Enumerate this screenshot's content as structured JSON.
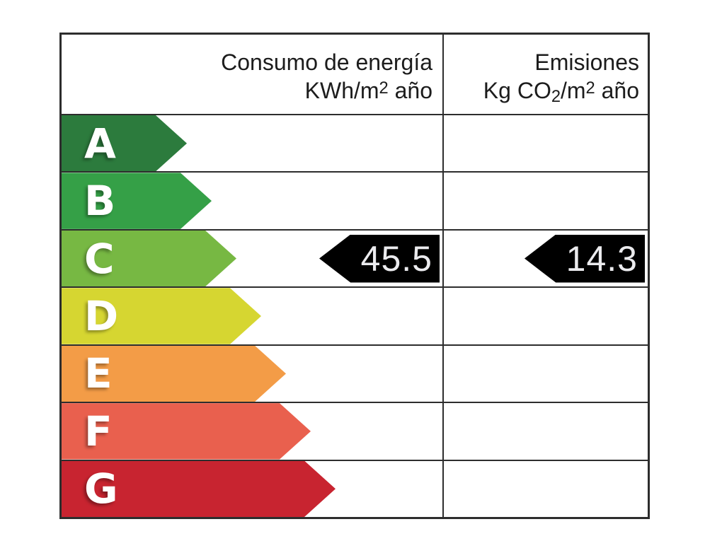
{
  "header": {
    "consumo": {
      "line1": "Consumo de energía",
      "line2_pre": "KWh/m",
      "line2_sup": "2",
      "line2_post": " año"
    },
    "emisiones": {
      "line1": "Emisiones",
      "line2_pre": "Kg CO",
      "line2_sub": "2",
      "line2_mid": "/m",
      "line2_sup": "2",
      "line2_post": " año"
    }
  },
  "bands": [
    {
      "letter": "A",
      "color": "#2c7b3d"
    },
    {
      "letter": "B",
      "color": "#35a047"
    },
    {
      "letter": "C",
      "color": "#77b843"
    },
    {
      "letter": "D",
      "color": "#d6d631"
    },
    {
      "letter": "E",
      "color": "#f39c47"
    },
    {
      "letter": "F",
      "color": "#e9604e"
    },
    {
      "letter": "G",
      "color": "#c82430"
    }
  ],
  "ratings": {
    "consumo": {
      "value": "45.5",
      "band": "C"
    },
    "emisiones": {
      "value": "14.3",
      "band": "C"
    }
  },
  "colors": {
    "value_arrow": "#000000",
    "value_text": "#ebebee",
    "grid_line": "#2d2d2d"
  },
  "chart_data": {
    "type": "bar",
    "title": "",
    "categories": [
      "A",
      "B",
      "C",
      "D",
      "E",
      "F",
      "G"
    ],
    "series": [
      {
        "name": "Consumo de energía KWh/m² año",
        "rated_band": "C",
        "value": 45.5
      },
      {
        "name": "Emisiones Kg CO₂/m² año",
        "rated_band": "C",
        "value": 14.3
      }
    ],
    "band_colors": [
      "#2c7b3d",
      "#35a047",
      "#77b843",
      "#d6d631",
      "#f39c47",
      "#e9604e",
      "#c82430"
    ],
    "legend_position": "none",
    "grid": true
  }
}
